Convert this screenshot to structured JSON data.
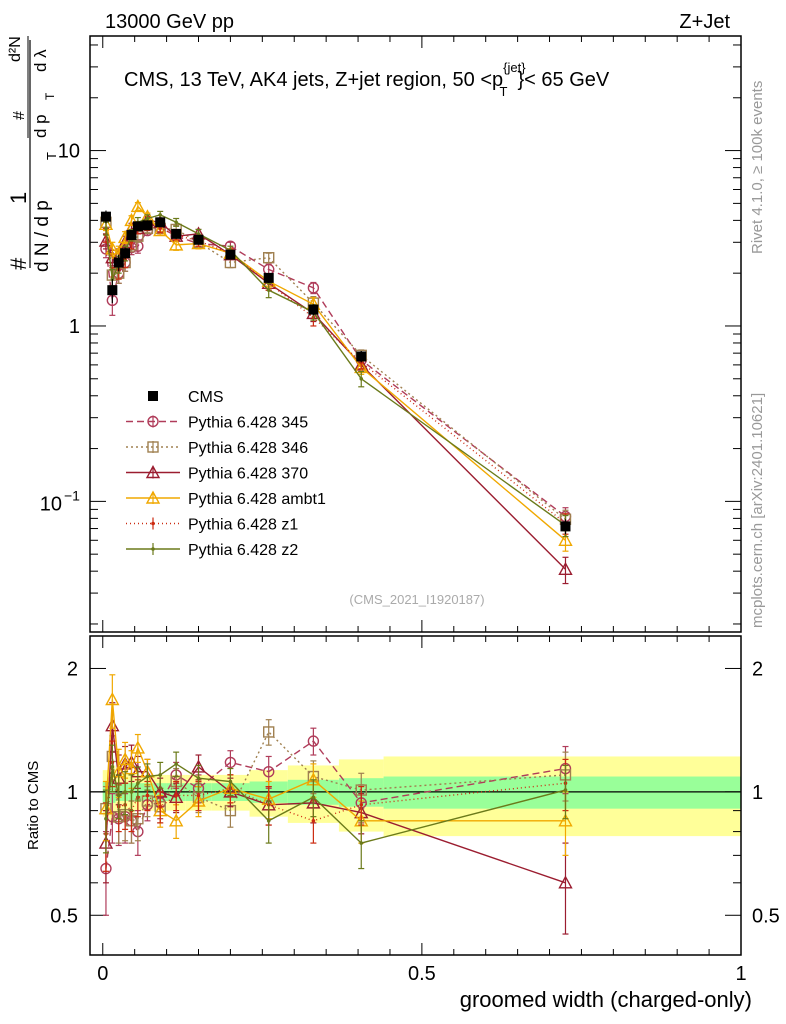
{
  "header": {
    "left": "13000 GeV pp",
    "right": "Z+Jet"
  },
  "side_labels": {
    "rivet": "Rivet 4.1.0, ≥ 100k events",
    "mcplots": "mcplots.cern.ch [arXiv:2401.10621]"
  },
  "chart_data": [
    {
      "type": "line",
      "panel": "main",
      "title": "CMS, 13 TeV, AK4 jets, Z+jet region, 50 <p_T^{jet}< 65 GeV",
      "title_parts": {
        "pre": "CMS, 13 TeV, AK4 jets, Z+jet region, 50 <p",
        "sup": "{jet}",
        "sub": "T",
        "post": "}< 65 GeV"
      },
      "ylabel": "1/dN/dp_T · d²N/dp_T dλ",
      "ylabel_parts": {
        "hash": "#",
        "one": "1",
        "dN": "d N / d p",
        "T": "T",
        "d2N": "d²N",
        "dpT": "d p",
        "dl": "d λ"
      },
      "yscale": "log",
      "ylim": [
        0.018,
        45
      ],
      "xlim": [
        -0.02,
        1.0
      ],
      "watermark": "(CMS_2021_I1920187)",
      "y_tick_labels": {
        "major": [
          "1",
          "10"
        ],
        "minus1": "10",
        "minus1_exp": "−1"
      },
      "x": [
        0.005,
        0.015,
        0.025,
        0.035,
        0.045,
        0.055,
        0.07,
        0.09,
        0.115,
        0.15,
        0.2,
        0.26,
        0.33,
        0.405,
        0.725
      ],
      "bin_edges": [
        0,
        0.01,
        0.02,
        0.03,
        0.04,
        0.05,
        0.06,
        0.08,
        0.1,
        0.13,
        0.17,
        0.23,
        0.29,
        0.37,
        0.44,
        1.0
      ],
      "data": {
        "name": "CMS",
        "values": [
          4.2,
          1.6,
          2.3,
          2.6,
          3.3,
          3.7,
          3.75,
          3.9,
          3.35,
          3.1,
          2.55,
          1.88,
          1.24,
          0.67,
          0.072
        ],
        "errors": [
          0.35,
          0.25,
          0.25,
          0.2,
          0.2,
          0.2,
          0.2,
          0.2,
          0.15,
          0.15,
          0.15,
          0.12,
          0.09,
          0.05,
          0.007
        ]
      },
      "series": [
        {
          "name": "Pythia 6.428 345",
          "color": "#b03c5a",
          "dash": "7,4",
          "marker": "circle",
          "values": [
            2.75,
            1.4,
            2.0,
            2.3,
            2.8,
            2.85,
            3.5,
            3.65,
            3.25,
            2.95,
            2.85,
            2.1,
            1.65,
            0.64,
            0.082
          ],
          "errors": [
            0.3,
            0.25,
            0.25,
            0.25,
            0.25,
            0.25,
            0.2,
            0.2,
            0.2,
            0.2,
            0.15,
            0.15,
            0.12,
            0.05,
            0.01
          ]
        },
        {
          "name": "Pythia 6.428 346",
          "color": "#a08050",
          "dash": "2,3",
          "marker": "square",
          "values": [
            3.9,
            1.95,
            2.0,
            2.3,
            2.9,
            3.25,
            3.6,
            3.6,
            3.55,
            3.0,
            2.3,
            2.45,
            1.35,
            0.68,
            0.079
          ],
          "errors": [
            0.3,
            0.25,
            0.25,
            0.25,
            0.25,
            0.25,
            0.2,
            0.2,
            0.2,
            0.2,
            0.15,
            0.15,
            0.12,
            0.05,
            0.01
          ]
        },
        {
          "name": "Pythia 6.428 370",
          "color": "#9b1d30",
          "dash": "",
          "marker": "triangle",
          "values": [
            3.05,
            2.45,
            2.5,
            3.0,
            3.6,
            3.6,
            4.0,
            3.9,
            3.25,
            3.35,
            2.55,
            1.75,
            1.18,
            0.6,
            0.041
          ],
          "errors": [
            0.3,
            0.25,
            0.25,
            0.25,
            0.25,
            0.25,
            0.2,
            0.2,
            0.2,
            0.2,
            0.15,
            0.15,
            0.12,
            0.05,
            0.007
          ]
        },
        {
          "name": "Pythia 6.428 ambt1",
          "color": "#f0a800",
          "dash": "",
          "marker": "triangle",
          "values": [
            3.8,
            2.75,
            2.6,
            3.2,
            4.0,
            4.8,
            4.2,
            3.5,
            2.9,
            2.95,
            2.6,
            1.8,
            1.33,
            0.58,
            0.06
          ],
          "errors": [
            0.3,
            0.25,
            0.25,
            0.25,
            0.25,
            0.25,
            0.2,
            0.2,
            0.2,
            0.2,
            0.15,
            0.15,
            0.12,
            0.05,
            0.008
          ]
        },
        {
          "name": "Pythia 6.428 z1",
          "color": "#cc2a10",
          "dash": "1,3",
          "marker": "dot",
          "values": [
            3.3,
            1.9,
            2.1,
            2.4,
            3.0,
            3.6,
            3.7,
            3.6,
            3.3,
            3.05,
            2.6,
            1.75,
            1.12,
            0.62,
            0.075
          ],
          "errors": [
            0.3,
            0.25,
            0.25,
            0.25,
            0.25,
            0.25,
            0.2,
            0.2,
            0.2,
            0.2,
            0.15,
            0.15,
            0.12,
            0.05,
            0.01
          ]
        },
        {
          "name": "Pythia 6.428 z2",
          "color": "#6b7a1a",
          "dash": "",
          "marker": "dot",
          "values": [
            3.6,
            1.85,
            2.25,
            2.6,
            3.3,
            3.9,
            4.1,
            4.3,
            3.9,
            3.35,
            2.7,
            1.6,
            1.2,
            0.5,
            0.073
          ],
          "errors": [
            0.3,
            0.25,
            0.25,
            0.25,
            0.25,
            0.25,
            0.2,
            0.2,
            0.2,
            0.2,
            0.15,
            0.15,
            0.12,
            0.05,
            0.01
          ]
        }
      ]
    },
    {
      "type": "line",
      "panel": "ratio",
      "ylabel": "Ratio to CMS",
      "xlabel": "groomed width (charged-only)",
      "ylim": [
        0.4,
        2.4
      ],
      "xlim": [
        -0.02,
        1.0
      ],
      "y_tick_labels": [
        "0.5",
        "1",
        "2"
      ],
      "x_tick_labels": [
        "0",
        "0.5",
        "1"
      ],
      "bin_edges": [
        0,
        0.01,
        0.02,
        0.03,
        0.04,
        0.05,
        0.06,
        0.08,
        0.1,
        0.13,
        0.17,
        0.23,
        0.29,
        0.37,
        0.44,
        1.0
      ],
      "band_inner": [
        0.06,
        0.06,
        0.05,
        0.05,
        0.05,
        0.05,
        0.05,
        0.05,
        0.05,
        0.05,
        0.05,
        0.06,
        0.07,
        0.08,
        0.09
      ],
      "band_outer": [
        0.13,
        0.16,
        0.12,
        0.11,
        0.11,
        0.1,
        0.1,
        0.1,
        0.1,
        0.1,
        0.1,
        0.13,
        0.16,
        0.2,
        0.22
      ],
      "x": [
        0.005,
        0.015,
        0.025,
        0.035,
        0.045,
        0.055,
        0.07,
        0.09,
        0.115,
        0.15,
        0.2,
        0.26,
        0.33,
        0.405,
        0.725
      ],
      "series": [
        {
          "name": "Pythia 6.428 345",
          "color": "#b03c5a",
          "dash": "7,4",
          "marker": "circle",
          "values": [
            0.65,
            0.87,
            0.86,
            0.87,
            0.85,
            0.8,
            0.93,
            0.94,
            1.1,
            1.02,
            1.18,
            1.12,
            1.33,
            0.94,
            1.14
          ],
          "errors": [
            0.15,
            0.12,
            0.12,
            0.12,
            0.1,
            0.1,
            0.08,
            0.08,
            0.08,
            0.08,
            0.08,
            0.1,
            0.1,
            0.1,
            0.15
          ]
        },
        {
          "name": "Pythia 6.428 346",
          "color": "#a08050",
          "dash": "2,3",
          "marker": "square",
          "values": [
            0.91,
            1.22,
            0.87,
            0.88,
            0.85,
            0.86,
            0.95,
            0.92,
            1.06,
            0.97,
            0.9,
            1.4,
            1.09,
            1.01,
            1.1
          ],
          "errors": [
            0.12,
            0.15,
            0.12,
            0.12,
            0.1,
            0.1,
            0.08,
            0.08,
            0.08,
            0.08,
            0.08,
            0.1,
            0.1,
            0.1,
            0.15
          ]
        },
        {
          "name": "Pythia 6.428 370",
          "color": "#9b1d30",
          "dash": "",
          "marker": "triangle",
          "values": [
            0.75,
            1.45,
            1.08,
            1.17,
            1.18,
            1.12,
            1.12,
            1.0,
            0.97,
            1.15,
            1.0,
            0.93,
            0.94,
            0.89,
            0.6
          ],
          "errors": [
            0.15,
            0.2,
            0.15,
            0.12,
            0.12,
            0.1,
            0.08,
            0.08,
            0.08,
            0.08,
            0.08,
            0.1,
            0.1,
            0.1,
            0.15
          ]
        },
        {
          "name": "Pythia 6.428 ambt1",
          "color": "#f0a800",
          "dash": "",
          "marker": "triangle",
          "values": [
            0.91,
            1.68,
            1.12,
            1.2,
            1.14,
            1.28,
            1.12,
            0.9,
            0.85,
            0.95,
            1.02,
            0.96,
            1.07,
            0.85,
            0.85
          ],
          "errors": [
            0.15,
            0.25,
            0.15,
            0.12,
            0.12,
            0.1,
            0.08,
            0.08,
            0.08,
            0.08,
            0.08,
            0.1,
            0.1,
            0.1,
            0.15
          ]
        },
        {
          "name": "Pythia 6.428 z1",
          "color": "#cc2a10",
          "dash": "1,3",
          "marker": "dot",
          "values": [
            0.79,
            1.18,
            0.92,
            0.93,
            0.9,
            0.97,
            0.98,
            0.92,
            0.98,
            0.98,
            1.02,
            0.93,
            0.85,
            0.93,
            1.05
          ],
          "errors": [
            0.15,
            0.15,
            0.12,
            0.12,
            0.1,
            0.1,
            0.08,
            0.08,
            0.08,
            0.08,
            0.08,
            0.1,
            0.1,
            0.1,
            0.15
          ]
        },
        {
          "name": "Pythia 6.428 z2",
          "color": "#6b7a1a",
          "dash": "",
          "marker": "dot",
          "values": [
            0.86,
            1.15,
            0.98,
            1.0,
            1.0,
            1.05,
            1.09,
            1.1,
            1.17,
            1.08,
            1.06,
            0.85,
            0.97,
            0.75,
            1.01
          ],
          "errors": [
            0.15,
            0.15,
            0.12,
            0.12,
            0.1,
            0.1,
            0.08,
            0.08,
            0.08,
            0.08,
            0.08,
            0.1,
            0.1,
            0.1,
            0.15
          ]
        }
      ]
    }
  ]
}
